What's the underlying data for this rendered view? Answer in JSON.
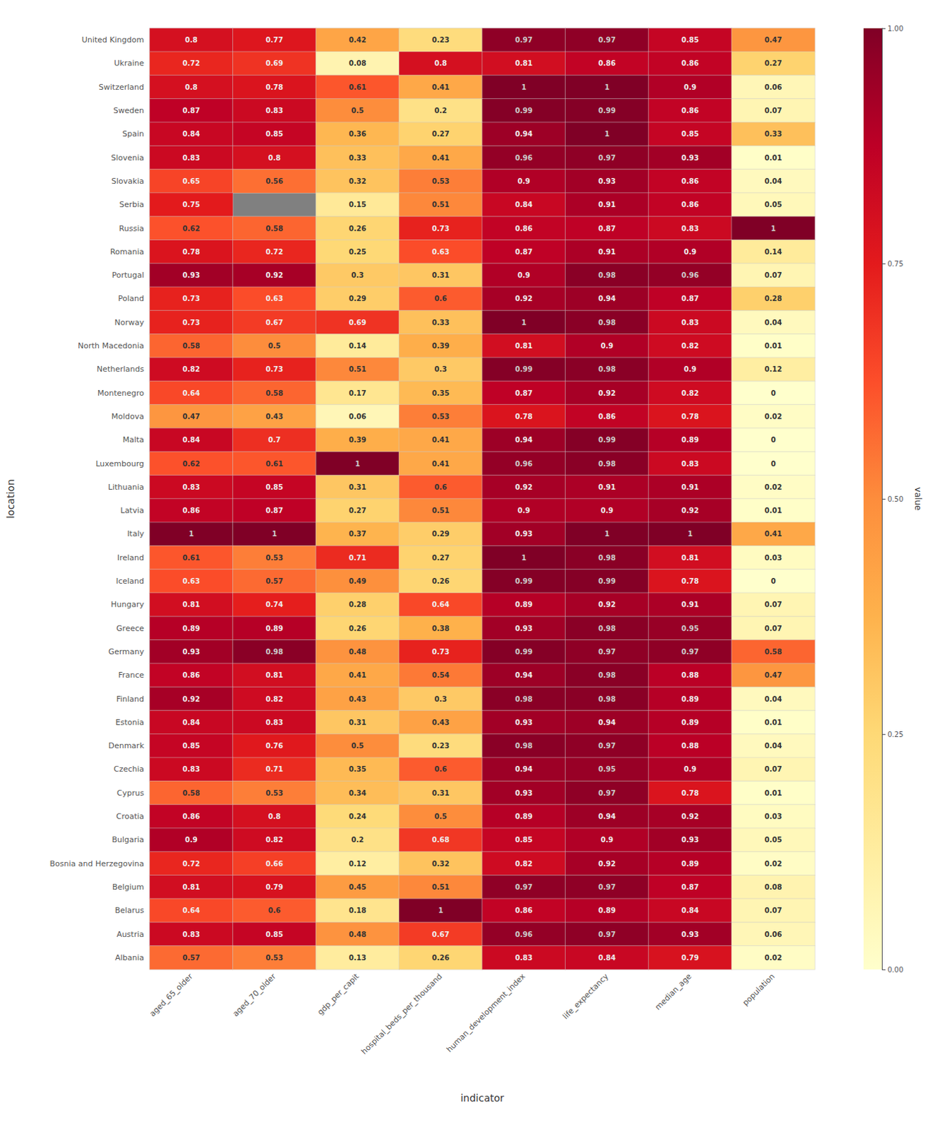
{
  "chart_data": {
    "type": "heatmap",
    "xlabel": "indicator",
    "ylabel": "location",
    "x": [
      "aged_65_older",
      "aged_70_older",
      "gdp_per_capit",
      "hospital_beds_per_thousand",
      "human_development_index",
      "life_expectancy",
      "median_age",
      "population"
    ],
    "y": [
      "United Kingdom",
      "Ukraine",
      "Switzerland",
      "Sweden",
      "Spain",
      "Slovenia",
      "Slovakia",
      "Serbia",
      "Russia",
      "Romania",
      "Portugal",
      "Poland",
      "Norway",
      "North Macedonia",
      "Netherlands",
      "Montenegro",
      "Moldova",
      "Malta",
      "Luxembourg",
      "Lithuania",
      "Latvia",
      "Italy",
      "Ireland",
      "Iceland",
      "Hungary",
      "Greece",
      "Germany",
      "France",
      "Finland",
      "Estonia",
      "Denmark",
      "Czechia",
      "Cyprus",
      "Croatia",
      "Bulgaria",
      "Bosnia and Herzegovina",
      "Belgium",
      "Belarus",
      "Austria",
      "Albania"
    ],
    "values": [
      [
        0.8,
        0.77,
        0.42,
        0.23,
        0.97,
        0.97,
        0.85,
        0.47
      ],
      [
        0.72,
        0.69,
        0.08,
        0.8,
        0.81,
        0.86,
        0.86,
        0.27
      ],
      [
        0.8,
        0.78,
        0.61,
        0.41,
        1.0,
        1.0,
        0.9,
        0.06
      ],
      [
        0.87,
        0.83,
        0.5,
        0.2,
        0.99,
        0.99,
        0.86,
        0.07
      ],
      [
        0.84,
        0.85,
        0.36,
        0.27,
        0.94,
        1.0,
        0.85,
        0.33
      ],
      [
        0.83,
        0.8,
        0.33,
        0.41,
        0.96,
        0.97,
        0.93,
        0.01
      ],
      [
        0.65,
        0.56,
        0.32,
        0.53,
        0.9,
        0.93,
        0.86,
        0.04
      ],
      [
        0.75,
        null,
        0.15,
        0.51,
        0.84,
        0.91,
        0.86,
        0.05
      ],
      [
        0.62,
        0.58,
        0.26,
        0.73,
        0.86,
        0.87,
        0.83,
        1.0
      ],
      [
        0.78,
        0.72,
        0.25,
        0.63,
        0.87,
        0.91,
        0.9,
        0.14
      ],
      [
        0.93,
        0.92,
        0.3,
        0.31,
        0.9,
        0.98,
        0.96,
        0.07
      ],
      [
        0.73,
        0.63,
        0.29,
        0.6,
        0.92,
        0.94,
        0.87,
        0.28
      ],
      [
        0.73,
        0.67,
        0.69,
        0.33,
        1.0,
        0.98,
        0.83,
        0.04
      ],
      [
        0.58,
        0.5,
        0.14,
        0.39,
        0.81,
        0.9,
        0.82,
        0.01
      ],
      [
        0.82,
        0.73,
        0.51,
        0.3,
        0.99,
        0.98,
        0.9,
        0.12
      ],
      [
        0.64,
        0.58,
        0.17,
        0.35,
        0.87,
        0.92,
        0.82,
        0.0
      ],
      [
        0.47,
        0.43,
        0.06,
        0.53,
        0.78,
        0.86,
        0.78,
        0.02
      ],
      [
        0.84,
        0.7,
        0.39,
        0.41,
        0.94,
        0.99,
        0.89,
        0.0
      ],
      [
        0.62,
        0.61,
        1.0,
        0.41,
        0.96,
        0.98,
        0.83,
        0.0
      ],
      [
        0.83,
        0.85,
        0.31,
        0.6,
        0.92,
        0.91,
        0.91,
        0.02
      ],
      [
        0.86,
        0.87,
        0.27,
        0.51,
        0.9,
        0.9,
        0.92,
        0.01
      ],
      [
        1.0,
        1.0,
        0.37,
        0.29,
        0.93,
        1.0,
        1.0,
        0.41
      ],
      [
        0.61,
        0.53,
        0.71,
        0.27,
        1.0,
        0.98,
        0.81,
        0.03
      ],
      [
        0.63,
        0.57,
        0.49,
        0.26,
        0.99,
        0.99,
        0.78,
        0.0
      ],
      [
        0.81,
        0.74,
        0.28,
        0.64,
        0.89,
        0.92,
        0.91,
        0.07
      ],
      [
        0.89,
        0.89,
        0.26,
        0.38,
        0.93,
        0.98,
        0.95,
        0.07
      ],
      [
        0.93,
        0.98,
        0.48,
        0.73,
        0.99,
        0.97,
        0.97,
        0.58
      ],
      [
        0.86,
        0.81,
        0.41,
        0.54,
        0.94,
        0.98,
        0.88,
        0.47
      ],
      [
        0.92,
        0.82,
        0.43,
        0.3,
        0.98,
        0.98,
        0.89,
        0.04
      ],
      [
        0.84,
        0.83,
        0.31,
        0.43,
        0.93,
        0.94,
        0.89,
        0.01
      ],
      [
        0.85,
        0.76,
        0.5,
        0.23,
        0.98,
        0.97,
        0.88,
        0.04
      ],
      [
        0.83,
        0.71,
        0.35,
        0.6,
        0.94,
        0.95,
        0.9,
        0.07
      ],
      [
        0.58,
        0.53,
        0.34,
        0.31,
        0.93,
        0.97,
        0.78,
        0.01
      ],
      [
        0.86,
        0.8,
        0.24,
        0.5,
        0.89,
        0.94,
        0.92,
        0.03
      ],
      [
        0.9,
        0.82,
        0.2,
        0.68,
        0.85,
        0.9,
        0.93,
        0.05
      ],
      [
        0.72,
        0.66,
        0.12,
        0.32,
        0.82,
        0.92,
        0.89,
        0.02
      ],
      [
        0.81,
        0.79,
        0.45,
        0.51,
        0.97,
        0.97,
        0.87,
        0.08
      ],
      [
        0.64,
        0.6,
        0.18,
        1.0,
        0.86,
        0.89,
        0.84,
        0.07
      ],
      [
        0.83,
        0.85,
        0.48,
        0.67,
        0.96,
        0.97,
        0.93,
        0.06
      ],
      [
        0.57,
        0.53,
        0.13,
        0.26,
        0.83,
        0.84,
        0.79,
        0.02
      ]
    ],
    "data_labels": true,
    "colorbar_label": "value",
    "colorbar_range": [
      0.0,
      1.0
    ],
    "colorbar_ticks": [
      {
        "value": 0.0,
        "label": "0.00"
      },
      {
        "value": 0.25,
        "label": "0.25"
      },
      {
        "value": 0.5,
        "label": "0.50"
      },
      {
        "value": 0.75,
        "label": "0.75"
      },
      {
        "value": 1.0,
        "label": "1.00"
      }
    ]
  }
}
